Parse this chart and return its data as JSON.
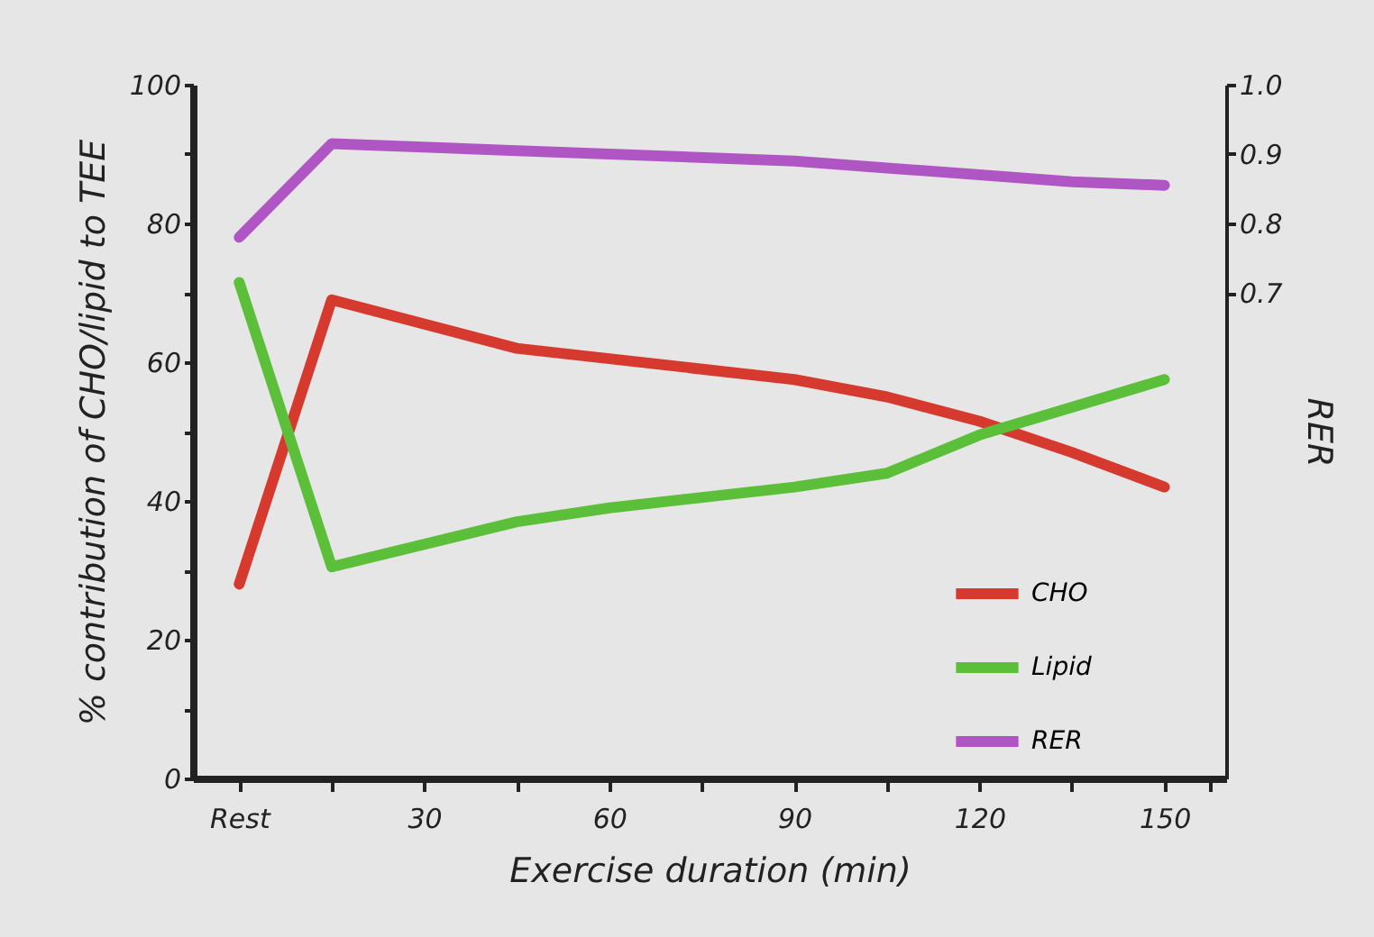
{
  "chart_data": {
    "type": "line",
    "xlabel": "Exercise duration (min)",
    "ylabel": "% contribution of CHO/lipid to TEE",
    "y2label": "RER",
    "x": [
      0,
      15,
      45,
      60,
      90,
      105,
      120,
      135,
      150
    ],
    "xlim": [
      -7.5,
      160
    ],
    "xticks": [
      {
        "value": 0,
        "label": "Rest"
      },
      {
        "value": 15,
        "label": null
      },
      30,
      {
        "value": 45,
        "label": null
      },
      60,
      {
        "value": 75,
        "label": null
      },
      90,
      {
        "value": 105,
        "label": null
      },
      120,
      {
        "value": 135,
        "label": null
      },
      150,
      {
        "value": 157.5,
        "label": null
      }
    ],
    "ylim": [
      0,
      100
    ],
    "yticks": [
      0,
      {
        "value": 10,
        "label": null
      },
      20,
      {
        "value": 30,
        "label": null
      },
      40,
      {
        "value": 50,
        "label": null
      },
      60,
      {
        "value": 70,
        "label": null
      },
      80,
      {
        "value": 90,
        "label": null
      },
      100
    ],
    "y2lim": [
      0,
      1.0
    ],
    "y2ticks": [
      0.7,
      0.8,
      0.9,
      {
        "value": 1.0,
        "label": "1.0"
      }
    ],
    "legend": "bottom right",
    "series": [
      {
        "name": "CHO",
        "color": "#d63a2f",
        "values": [
          28,
          69,
          62,
          60.5,
          57.5,
          55,
          51.5,
          47,
          42
        ]
      },
      {
        "name": "Lipid",
        "color": "#5cbf3a",
        "values": [
          71.5,
          30.5,
          37,
          39,
          42,
          44,
          49.5,
          53.5,
          57.5
        ]
      },
      {
        "name": "RER",
        "color": "#b055c4",
        "axis": "y2",
        "values": [
          0.78,
          0.915,
          0.905,
          0.9,
          0.89,
          0.88,
          0.87,
          0.86,
          0.855
        ]
      }
    ]
  }
}
